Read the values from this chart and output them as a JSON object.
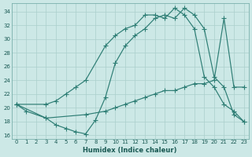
{
  "xlabel": "Humidex (Indice chaleur)",
  "background_color": "#cce8e6",
  "grid_color": "#aacfcc",
  "line_color": "#2d7d74",
  "xlim": [
    -0.5,
    23.5
  ],
  "ylim": [
    15.5,
    35.2
  ],
  "yticks": [
    16,
    18,
    20,
    22,
    24,
    26,
    28,
    30,
    32,
    34
  ],
  "xticks": [
    0,
    1,
    2,
    3,
    4,
    5,
    6,
    7,
    8,
    9,
    10,
    11,
    12,
    13,
    14,
    15,
    16,
    17,
    18,
    19,
    20,
    21,
    22,
    23
  ],
  "line1_x": [
    0,
    1,
    3,
    4,
    5,
    6,
    7,
    8,
    9,
    10,
    11,
    12,
    13,
    14,
    15,
    16,
    17,
    18,
    19,
    20,
    21,
    22,
    23
  ],
  "line1_y": [
    20.5,
    19.5,
    18.5,
    17.5,
    17.0,
    16.5,
    16.2,
    18.2,
    21.5,
    26.5,
    29.0,
    30.5,
    31.5,
    33.0,
    33.5,
    33.0,
    34.5,
    33.5,
    31.5,
    24.5,
    23.0,
    19.0,
    18.0
  ],
  "line2_x": [
    0,
    3,
    4,
    5,
    6,
    7,
    9,
    10,
    11,
    12,
    13,
    14,
    15,
    16,
    17,
    18,
    19,
    20,
    21,
    22,
    23
  ],
  "line2_y": [
    20.5,
    20.5,
    21.0,
    22.0,
    23.0,
    24.0,
    29.0,
    30.5,
    31.5,
    32.0,
    33.5,
    33.5,
    33.0,
    34.5,
    33.5,
    31.5,
    24.5,
    23.0,
    20.5,
    19.5,
    18.0
  ],
  "line3_x": [
    0,
    3,
    7,
    9,
    10,
    11,
    12,
    13,
    14,
    15,
    16,
    17,
    18,
    19,
    20,
    21,
    22,
    23
  ],
  "line3_y": [
    20.5,
    18.5,
    19.0,
    19.5,
    20.0,
    20.5,
    21.0,
    21.5,
    22.0,
    22.5,
    22.5,
    23.0,
    23.5,
    23.5,
    24.0,
    33.0,
    23.0,
    23.0
  ]
}
